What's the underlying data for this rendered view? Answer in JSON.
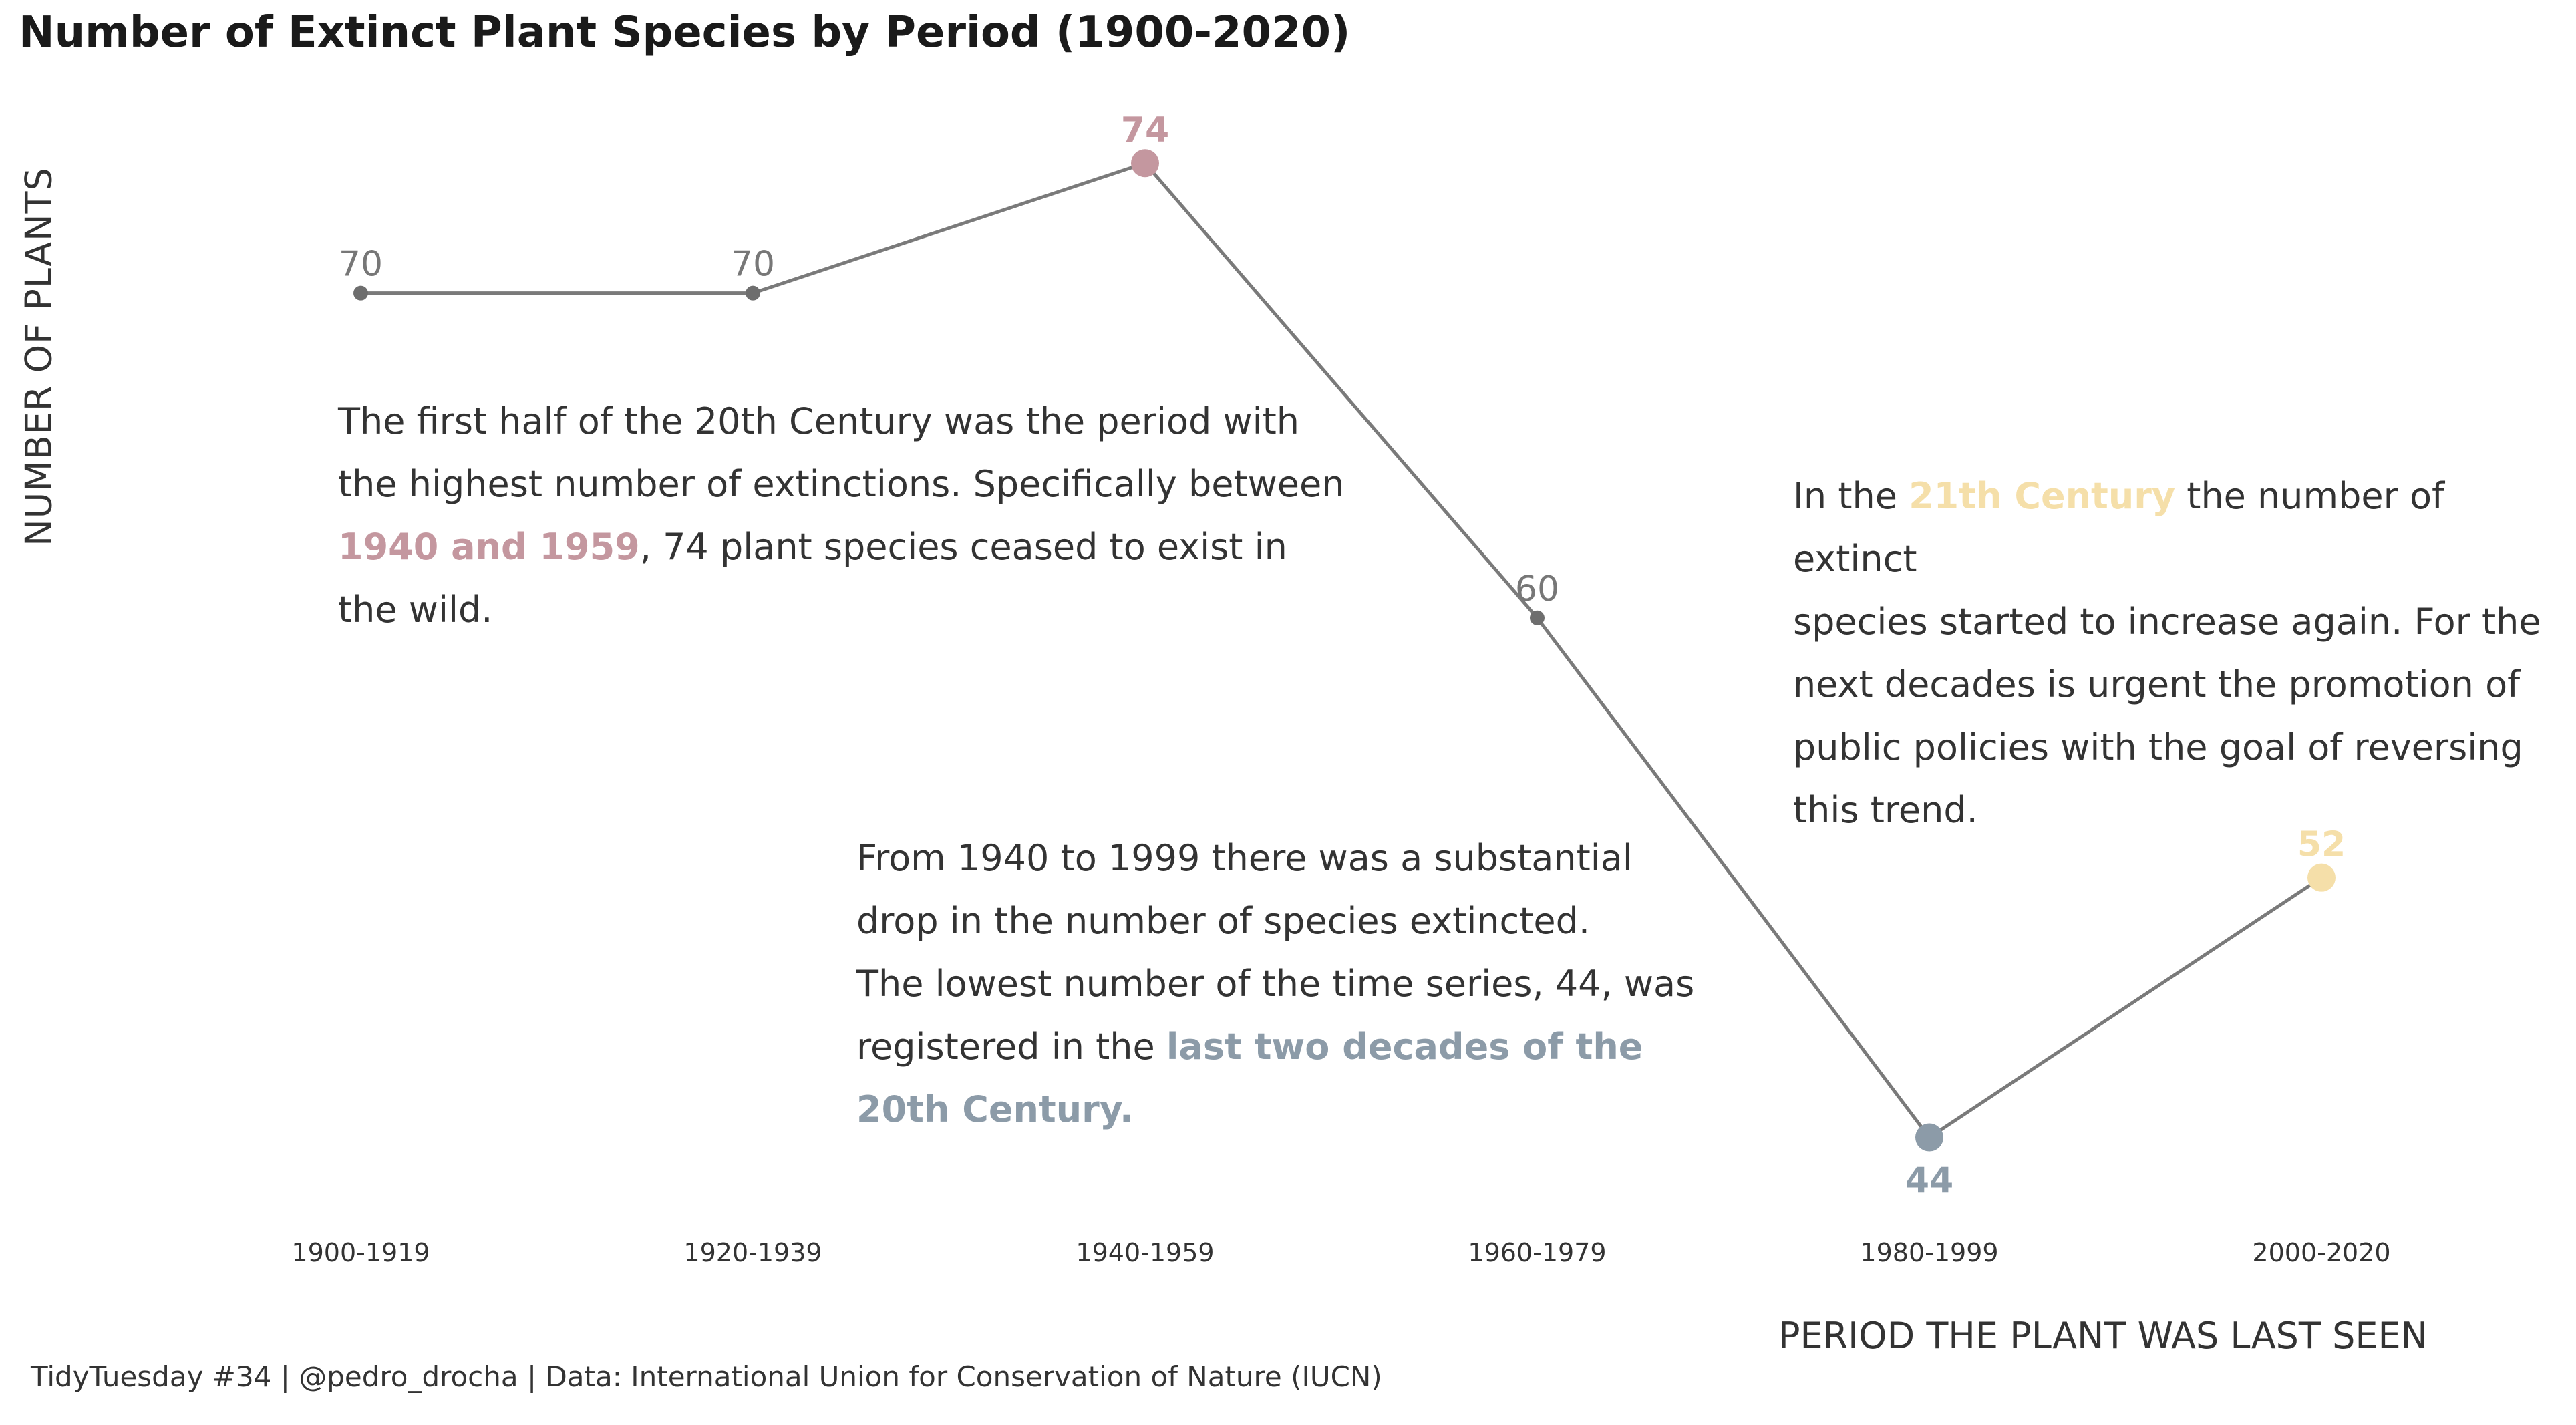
{
  "chart_data": {
    "type": "line",
    "title": "Number of Extinct Plant Species by Period (1900-2020)",
    "xlabel": "PERIOD THE PLANT WAS LAST SEEN",
    "ylabel": "NUMBER OF PLANTS",
    "categories": [
      "1900-1919",
      "1920-1939",
      "1940-1959",
      "1960-1979",
      "1980-1999",
      "2000-2020"
    ],
    "values": [
      70,
      70,
      74,
      60,
      44,
      52
    ],
    "labels": [
      "70",
      "70",
      "74",
      "60",
      "44",
      "52"
    ],
    "ylim": [
      40,
      76
    ],
    "grid": false,
    "line_color": "#7a7a7a",
    "highlight_colors": {
      "max": "#c4979f",
      "min": "#8c9ba8",
      "recent": "#f5dfa9",
      "default": "#6e6e6e"
    },
    "annotations": [
      {
        "segments": [
          {
            "text": "The first half of the 20th Century was the period with"
          },
          {
            "br": true
          },
          {
            "text": "the highest number of extinctions. Specifically between"
          },
          {
            "br": true
          },
          {
            "text": "1940 and 1959",
            "color": "#c4979f"
          },
          {
            "text": ", 74 plant species ceased to exist in"
          },
          {
            "br": true
          },
          {
            "text": "the wild."
          }
        ]
      },
      {
        "segments": [
          {
            "text": "From 1940 to 1999 there was a substantial"
          },
          {
            "br": true
          },
          {
            "text": "drop in the number of species extincted."
          },
          {
            "br": true
          },
          {
            "text": "The lowest number of the time series, 44, was"
          },
          {
            "br": true
          },
          {
            "text": "registered in the  "
          },
          {
            "text": "last two decades of the",
            "color": "#8c9ba8"
          },
          {
            "br": true
          },
          {
            "text": "20th Century.",
            "color": "#8c9ba8"
          }
        ]
      },
      {
        "segments": [
          {
            "text": "In the "
          },
          {
            "text": "21th Century",
            "color": "#f5dfa9"
          },
          {
            "text": " the number of extinct"
          },
          {
            "br": true
          },
          {
            "text": "species started to increase again. For the"
          },
          {
            "br": true
          },
          {
            "text": "next decades is urgent the promotion of"
          },
          {
            "br": true
          },
          {
            "text": "public policies with the goal of reversing"
          },
          {
            "br": true
          },
          {
            "text": "this trend."
          }
        ]
      }
    ]
  },
  "caption": "TidyTuesday #34 | @pedro_drocha | Data: International Union for Conservation of Nature (IUCN)"
}
